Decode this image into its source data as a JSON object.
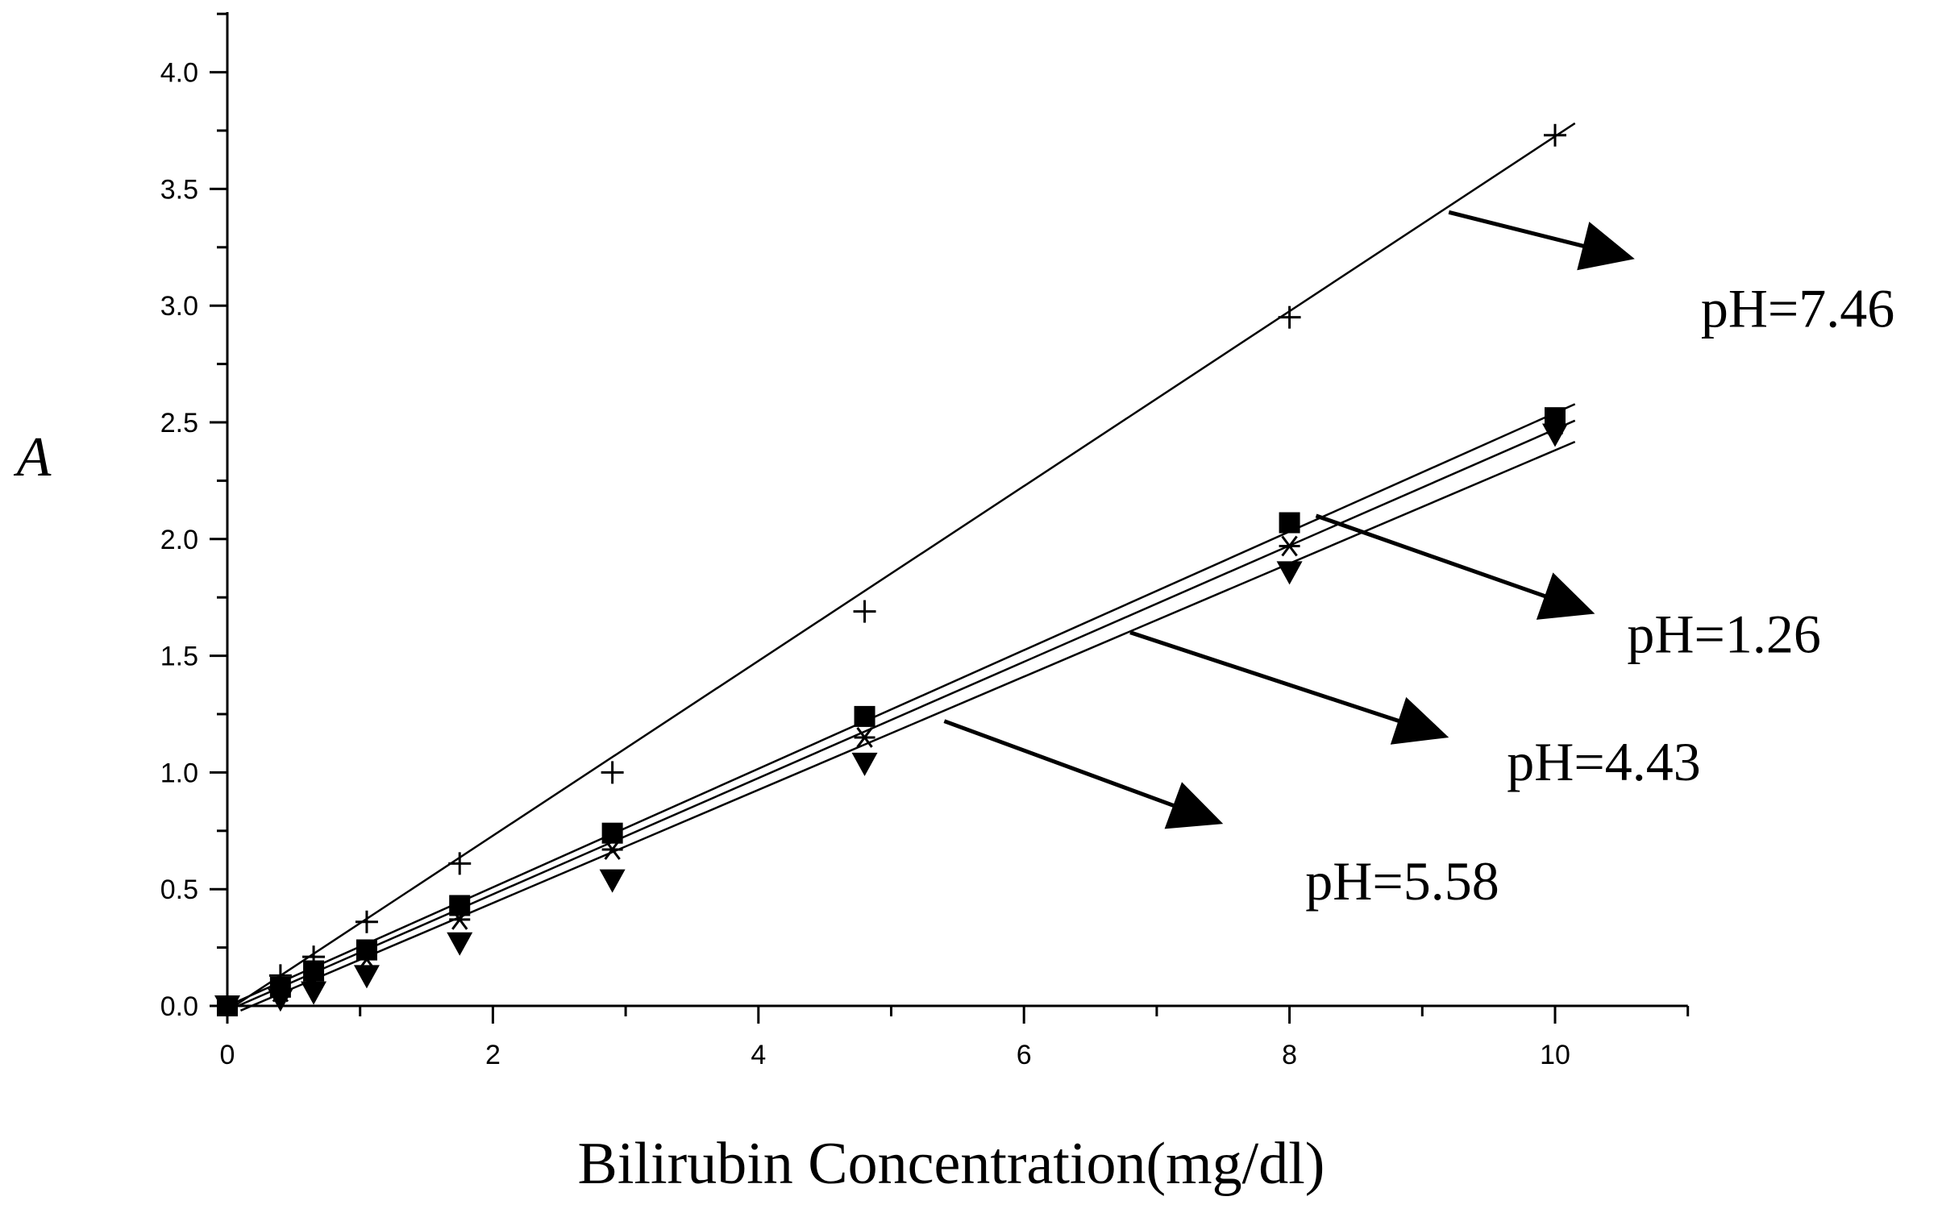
{
  "chart_data": {
    "type": "scatter",
    "title": "",
    "xlabel": "Bilirubin Concentration(mg/dl)",
    "ylabel": "A",
    "xlim": [
      0,
      11
    ],
    "ylim": [
      0,
      4.25
    ],
    "xticks": [
      0,
      2,
      4,
      6,
      8,
      10
    ],
    "yticks": [
      0.0,
      0.5,
      1.0,
      1.5,
      2.0,
      2.5,
      3.0,
      3.5,
      4.0
    ],
    "ytick_labels": [
      "0.0",
      "0.5",
      "1.0",
      "1.5",
      "2.0",
      "2.5",
      "3.0",
      "3.5",
      "4.0"
    ],
    "x": [
      0,
      0.4,
      0.65,
      1.05,
      1.75,
      2.9,
      4.8,
      8.0,
      10.0
    ],
    "series": [
      {
        "name": "pH=7.46",
        "marker": "plus",
        "values": [
          0.0,
          0.13,
          0.21,
          0.36,
          0.61,
          1.0,
          1.69,
          2.95,
          3.73
        ],
        "fit": {
          "slope": 0.3745,
          "intercept": -0.02
        },
        "fit_x": [
          0,
          10.15
        ]
      },
      {
        "name": "pH=1.26",
        "marker": "square",
        "values": [
          0.0,
          0.08,
          0.15,
          0.24,
          0.43,
          0.74,
          1.24,
          2.07,
          2.52
        ],
        "fit": {
          "slope": 0.254,
          "intercept": 0.0
        },
        "fit_x": [
          0,
          10.15
        ]
      },
      {
        "name": "pH=4.43",
        "marker": "asterisk",
        "values": [
          0.0,
          0.06,
          0.11,
          0.2,
          0.37,
          0.67,
          1.15,
          1.97,
          2.49
        ],
        "fit": {
          "slope": 0.25,
          "intercept": -0.03
        },
        "fit_x": [
          0,
          10.15
        ]
      },
      {
        "name": "pH=5.58",
        "marker": "triangle-down",
        "values": [
          0.0,
          0.03,
          0.06,
          0.13,
          0.27,
          0.54,
          1.04,
          1.86,
          2.45
        ],
        "fit": {
          "slope": 0.245,
          "intercept": -0.07
        },
        "fit_x": [
          0.1,
          10.15
        ]
      }
    ],
    "annotations": [
      {
        "text": "pH=7.46",
        "series": "pH=7.46",
        "from": [
          9.2,
          3.4
        ],
        "to": [
          10.6,
          3.2
        ]
      },
      {
        "text": "pH=1.26",
        "series": "pH=1.26",
        "from": [
          8.2,
          2.1
        ],
        "to": [
          10.3,
          1.68
        ]
      },
      {
        "text": "pH=4.43",
        "series": "pH=4.43",
        "from": [
          6.8,
          1.6
        ],
        "to": [
          9.2,
          1.15
        ]
      },
      {
        "text": "pH=5.58",
        "series": "pH=5.58",
        "from": [
          5.4,
          1.22
        ],
        "to": [
          7.5,
          0.78
        ]
      }
    ]
  }
}
